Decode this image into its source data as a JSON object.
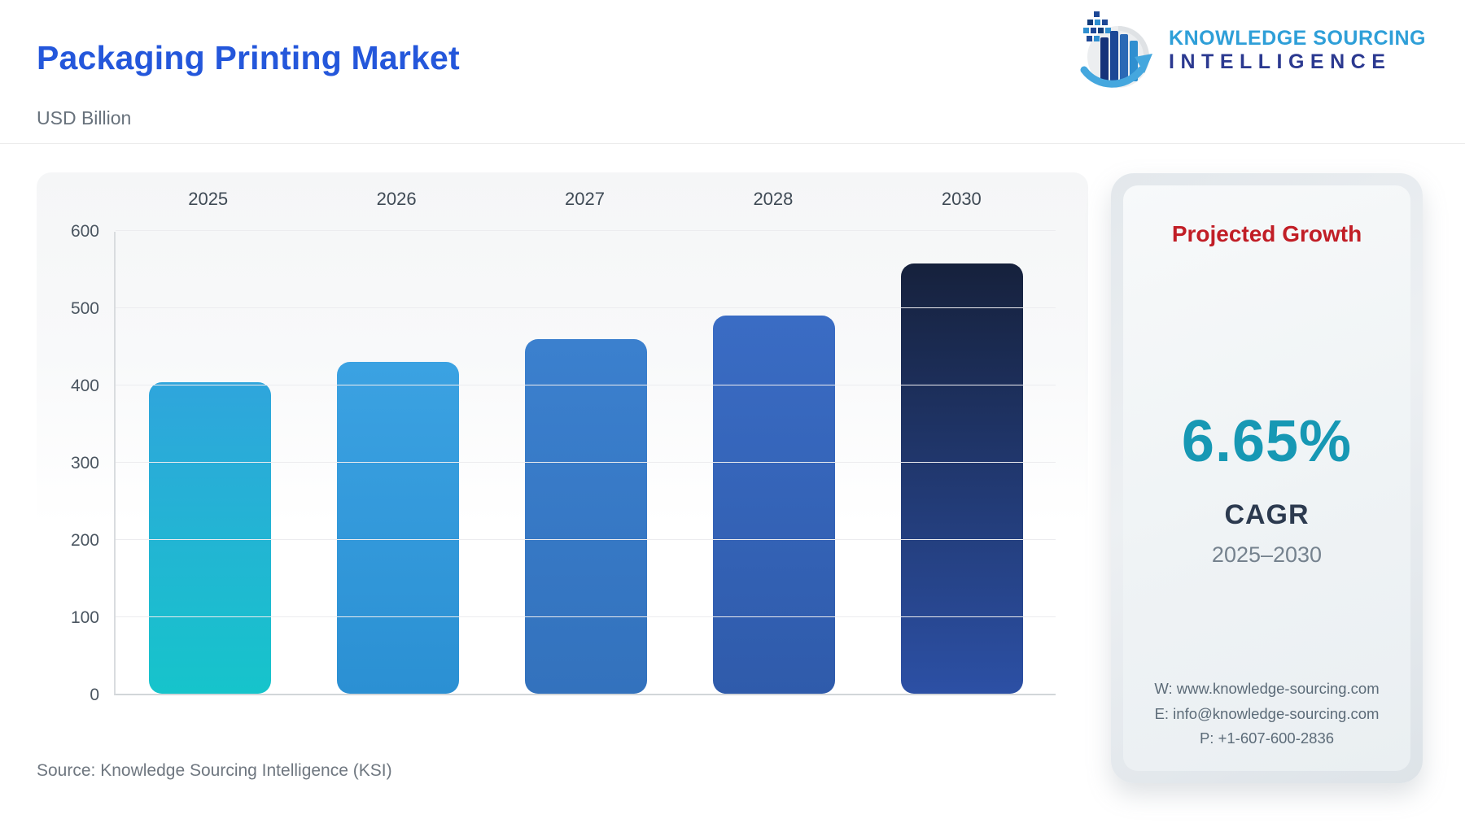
{
  "header": {
    "title": "Packaging Printing Market",
    "subtitle": "USD Billion",
    "logo": {
      "line1": "KNOWLEDGE SOURCING",
      "line2": "INTELLIGENCE",
      "mark": "bar-chart-growth-arrow-globe"
    }
  },
  "chart_data": {
    "type": "bar",
    "title": "Packaging Printing Market",
    "ylabel": "USD Billion",
    "xlabel": "",
    "categories": [
      "2025",
      "2026",
      "2027",
      "2028",
      "2030"
    ],
    "values": [
      403,
      430,
      459,
      490,
      557
    ],
    "ylim": [
      0,
      600
    ],
    "yticks": [
      0,
      100,
      200,
      300,
      400,
      500,
      600
    ],
    "grid": true,
    "legend": "none",
    "bar_colors": [
      [
        "#2FA5DC",
        "#16C4CB"
      ],
      [
        "#3BA2E2",
        "#2B90D3"
      ],
      [
        "#3B80CE",
        "#3372BD"
      ],
      [
        "#3A6CC4",
        "#2F5BAB"
      ],
      [
        "#16213C",
        "#2C50A5"
      ]
    ]
  },
  "panel": {
    "title": "Projected Growth",
    "value": "6.65%",
    "label": "CAGR",
    "period": "2025–2030",
    "contact": {
      "website": "W: www.knowledge-sourcing.com",
      "email": "E: info@knowledge-sourcing.com",
      "phone": "P: +1-607-600-2836"
    },
    "accent_red": "#C11E26",
    "accent_teal": "#1798B4"
  },
  "footer": {
    "source": "Source: Knowledge Sourcing Intelligence (KSI)"
  }
}
